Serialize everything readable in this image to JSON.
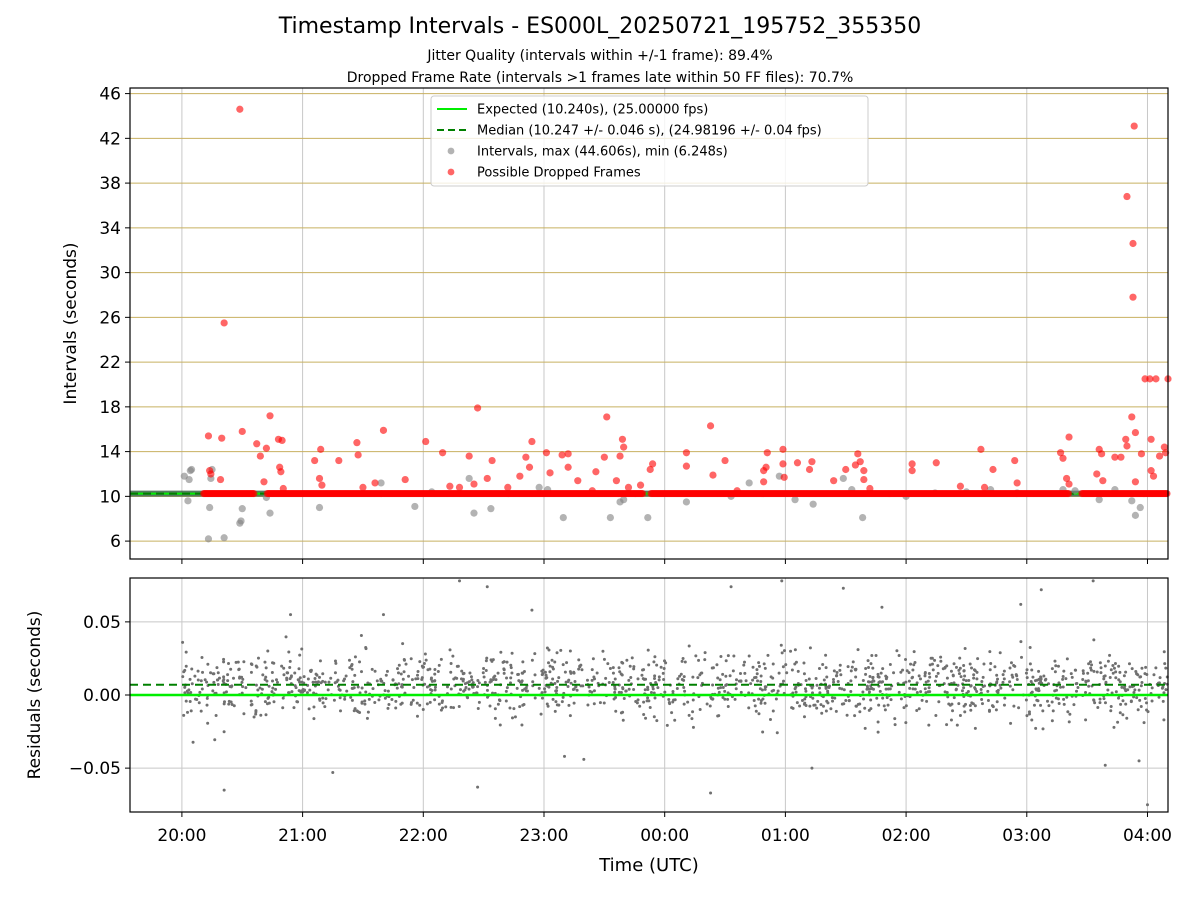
{
  "header": {
    "title": "Timestamp Intervals - ES000L_20250721_195752_355350",
    "subtitle_jitter": "Jitter Quality (intervals within +/-1 frame): 89.4%",
    "subtitle_dropped": "Dropped Frame Rate (intervals >1 frames late within 50 FF files): 70.7%"
  },
  "colors": {
    "expected": "#00ee00",
    "median": "#008000",
    "intervals": "#808080",
    "dropped": "#ff0000",
    "residuals": "#707070",
    "hgrid_top": "#c8b060",
    "grid": "#c8c8c8"
  },
  "chart_data": [
    {
      "type": "scatter",
      "panel": "intervals",
      "ylabel": "Intervals (seconds)",
      "xlabel": "",
      "x_unit": "hours since 00:00 UTC (negative = before midnight)",
      "xlim": [
        -4.43,
        4.17
      ],
      "ylim": [
        4.4,
        46.5
      ],
      "yticks": [
        6,
        10,
        14,
        18,
        22,
        26,
        30,
        34,
        38,
        42,
        46
      ],
      "ytick_labels": [
        "6",
        "10",
        "14",
        "18",
        "22",
        "26",
        "30",
        "34",
        "38",
        "42",
        "46"
      ],
      "grid": "on",
      "legend_position": "upper-center",
      "legend": [
        "Expected (10.240s), (25.00000 fps)",
        "Median (10.247 +/- 0.046 s), (24.98196 +/- 0.04 fps)",
        "Intervals, max (44.606s), min (6.248s)",
        "Possible Dropped Frames"
      ],
      "expected_value": 10.24,
      "median_value": 10.247,
      "series": [
        {
          "name": "Intervals, max (44.606s), min (6.248s)",
          "points": [
            [
              -3.98,
              11.8
            ],
            [
              -3.95,
              9.6
            ],
            [
              -3.94,
              11.5
            ],
            [
              -3.93,
              12.3
            ],
            [
              -3.92,
              12.4
            ],
            [
              -3.78,
              6.2
            ],
            [
              -3.77,
              9.0
            ],
            [
              -3.76,
              11.6
            ],
            [
              -3.75,
              12.4
            ],
            [
              -3.65,
              6.3
            ],
            [
              -3.52,
              7.6
            ],
            [
              -3.51,
              7.8
            ],
            [
              -3.5,
              8.9
            ],
            [
              -3.3,
              9.9
            ],
            [
              -3.27,
              8.5
            ],
            [
              -2.86,
              9.0
            ],
            [
              -2.35,
              11.2
            ],
            [
              -2.07,
              9.1
            ],
            [
              -1.93,
              10.4
            ],
            [
              -1.62,
              11.6
            ],
            [
              -1.58,
              8.5
            ],
            [
              -1.44,
              8.9
            ],
            [
              -1.04,
              10.8
            ],
            [
              -0.97,
              10.6
            ],
            [
              -0.84,
              8.1
            ],
            [
              -0.45,
              8.1
            ],
            [
              -0.37,
              9.5
            ],
            [
              -0.34,
              9.7
            ],
            [
              -0.14,
              8.1
            ],
            [
              0.18,
              9.5
            ],
            [
              0.55,
              10.0
            ],
            [
              0.7,
              11.2
            ],
            [
              0.95,
              11.8
            ],
            [
              1.08,
              9.7
            ],
            [
              1.23,
              9.3
            ],
            [
              1.48,
              11.6
            ],
            [
              1.55,
              10.6
            ],
            [
              1.64,
              8.1
            ],
            [
              2.0,
              10.0
            ],
            [
              2.24,
              10.3
            ],
            [
              2.5,
              10.4
            ],
            [
              2.7,
              10.6
            ],
            [
              2.92,
              10.3
            ],
            [
              3.3,
              10.6
            ],
            [
              3.4,
              10.5
            ],
            [
              3.6,
              9.7
            ],
            [
              3.73,
              10.6
            ],
            [
              3.87,
              9.6
            ],
            [
              3.9,
              8.3
            ],
            [
              3.94,
              9.0
            ]
          ]
        },
        {
          "name": "Possible Dropped Frames",
          "baseline": {
            "value": 10.25,
            "x_from": -3.82,
            "x_to": 4.17,
            "gaps": [
              [
                -3.4,
                -3.3
              ],
              [
                -0.18,
                -0.12
              ],
              [
                3.35,
                3.45
              ]
            ]
          },
          "points": [
            [
              -3.78,
              15.4
            ],
            [
              -3.77,
              12.3
            ],
            [
              -3.76,
              12.0
            ],
            [
              -3.68,
              11.5
            ],
            [
              -3.67,
              15.2
            ],
            [
              -3.65,
              25.5
            ],
            [
              -3.52,
              44.6
            ],
            [
              -3.5,
              15.8
            ],
            [
              -3.38,
              14.7
            ],
            [
              -3.35,
              13.6
            ],
            [
              -3.32,
              11.3
            ],
            [
              -3.3,
              14.3
            ],
            [
              -3.27,
              17.2
            ],
            [
              -3.2,
              15.1
            ],
            [
              -3.19,
              12.6
            ],
            [
              -3.18,
              12.2
            ],
            [
              -3.17,
              15.0
            ],
            [
              -3.16,
              10.7
            ],
            [
              -2.9,
              13.2
            ],
            [
              -2.85,
              14.2
            ],
            [
              -2.86,
              11.6
            ],
            [
              -2.84,
              11.0
            ],
            [
              -2.7,
              13.2
            ],
            [
              -2.55,
              14.8
            ],
            [
              -2.54,
              13.7
            ],
            [
              -2.5,
              10.8
            ],
            [
              -2.4,
              11.2
            ],
            [
              -2.33,
              15.9
            ],
            [
              -2.15,
              11.5
            ],
            [
              -1.98,
              14.9
            ],
            [
              -1.84,
              13.9
            ],
            [
              -1.78,
              10.9
            ],
            [
              -1.7,
              10.8
            ],
            [
              -1.58,
              11.1
            ],
            [
              -1.55,
              17.9
            ],
            [
              -1.62,
              13.6
            ],
            [
              -1.47,
              11.6
            ],
            [
              -1.43,
              13.2
            ],
            [
              -1.3,
              10.8
            ],
            [
              -1.2,
              11.8
            ],
            [
              -1.15,
              13.5
            ],
            [
              -1.12,
              12.6
            ],
            [
              -1.1,
              14.9
            ],
            [
              -0.98,
              13.9
            ],
            [
              -0.95,
              12.1
            ],
            [
              -0.85,
              13.7
            ],
            [
              -0.8,
              12.6
            ],
            [
              -0.72,
              11.4
            ],
            [
              -0.8,
              13.8
            ],
            [
              -0.6,
              10.5
            ],
            [
              -0.57,
              12.2
            ],
            [
              -0.5,
              13.5
            ],
            [
              -0.48,
              17.1
            ],
            [
              -0.4,
              11.4
            ],
            [
              -0.37,
              13.6
            ],
            [
              -0.35,
              15.1
            ],
            [
              -0.34,
              14.4
            ],
            [
              -0.3,
              10.8
            ],
            [
              -0.2,
              11.0
            ],
            [
              -0.12,
              12.4
            ],
            [
              -0.1,
              12.9
            ],
            [
              0.18,
              13.9
            ],
            [
              0.18,
              12.7
            ],
            [
              0.38,
              16.3
            ],
            [
              0.4,
              11.9
            ],
            [
              0.5,
              13.2
            ],
            [
              0.6,
              10.5
            ],
            [
              0.82,
              12.3
            ],
            [
              0.84,
              12.6
            ],
            [
              0.85,
              13.9
            ],
            [
              0.82,
              11.3
            ],
            [
              0.98,
              14.2
            ],
            [
              0.98,
              12.9
            ],
            [
              0.99,
              11.7
            ],
            [
              1.1,
              13.0
            ],
            [
              1.2,
              12.4
            ],
            [
              1.22,
              13.1
            ],
            [
              1.4,
              11.4
            ],
            [
              1.5,
              12.4
            ],
            [
              1.58,
              12.8
            ],
            [
              1.6,
              13.8
            ],
            [
              1.62,
              13.1
            ],
            [
              1.65,
              12.3
            ],
            [
              1.65,
              11.5
            ],
            [
              1.7,
              10.7
            ],
            [
              2.05,
              12.9
            ],
            [
              2.05,
              12.3
            ],
            [
              2.25,
              13.0
            ],
            [
              2.45,
              10.9
            ],
            [
              2.62,
              14.2
            ],
            [
              2.72,
              12.4
            ],
            [
              2.65,
              10.8
            ],
            [
              2.9,
              13.2
            ],
            [
              2.92,
              11.2
            ],
            [
              3.28,
              13.9
            ],
            [
              3.3,
              13.4
            ],
            [
              3.35,
              15.3
            ],
            [
              3.33,
              11.6
            ],
            [
              3.35,
              11.1
            ],
            [
              3.6,
              14.2
            ],
            [
              3.62,
              13.8
            ],
            [
              3.58,
              12.0
            ],
            [
              3.63,
              11.4
            ],
            [
              3.73,
              13.5
            ],
            [
              3.78,
              13.5
            ],
            [
              3.82,
              15.1
            ],
            [
              3.83,
              14.5
            ],
            [
              3.83,
              36.8
            ],
            [
              3.87,
              17.1
            ],
            [
              3.88,
              32.6
            ],
            [
              3.88,
              27.8
            ],
            [
              3.89,
              43.1
            ],
            [
              3.9,
              15.7
            ],
            [
              3.95,
              13.8
            ],
            [
              3.98,
              20.5
            ],
            [
              4.02,
              20.5
            ],
            [
              4.07,
              20.5
            ],
            [
              4.17,
              20.5
            ],
            [
              4.03,
              15.1
            ],
            [
              4.03,
              12.3
            ],
            [
              4.1,
              13.6
            ],
            [
              4.14,
              14.4
            ],
            [
              4.15,
              13.9
            ],
            [
              4.05,
              11.8
            ],
            [
              3.9,
              11.3
            ]
          ]
        }
      ]
    },
    {
      "type": "scatter",
      "panel": "residuals",
      "ylabel": "Residuals (seconds)",
      "xlabel": "Time (UTC)",
      "x_unit": "hours since 00:00 UTC (negative = before midnight)",
      "xlim": [
        -4.43,
        4.17
      ],
      "ylim": [
        -0.08,
        0.08
      ],
      "yticks": [
        -0.05,
        0.0,
        0.05
      ],
      "ytick_labels": [
        "−0.05",
        "0.00",
        "0.05"
      ],
      "xticks": [
        -4,
        -3,
        -2,
        -1,
        0,
        1,
        2,
        3,
        4
      ],
      "xtick_labels": [
        "20:00",
        "21:00",
        "22:00",
        "23:00",
        "00:00",
        "01:00",
        "02:00",
        "03:00",
        "04:00"
      ],
      "grid": "on",
      "expected_residual": 0.0,
      "median_residual": 0.007,
      "series": [
        {
          "name": "Residuals",
          "x_range": [
            -4.0,
            4.17
          ],
          "mean": 0.006,
          "spread_sd": 0.011,
          "count": 1500,
          "outliers": [
            [
              -3.65,
              -0.065
            ],
            [
              -3.1,
              0.055
            ],
            [
              -2.75,
              -0.053
            ],
            [
              -2.33,
              0.055
            ],
            [
              -1.7,
              0.078
            ],
            [
              -1.55,
              -0.063
            ],
            [
              -1.47,
              0.074
            ],
            [
              -1.1,
              0.058
            ],
            [
              -0.83,
              -0.042
            ],
            [
              -0.67,
              -0.044
            ],
            [
              0.38,
              -0.067
            ],
            [
              0.55,
              0.074
            ],
            [
              0.97,
              0.078
            ],
            [
              1.22,
              -0.05
            ],
            [
              1.48,
              0.073
            ],
            [
              1.8,
              0.06
            ],
            [
              2.95,
              0.062
            ],
            [
              3.12,
              0.072
            ],
            [
              3.55,
              0.078
            ],
            [
              3.65,
              -0.048
            ],
            [
              3.93,
              -0.045
            ],
            [
              4.0,
              -0.075
            ]
          ]
        }
      ]
    }
  ]
}
